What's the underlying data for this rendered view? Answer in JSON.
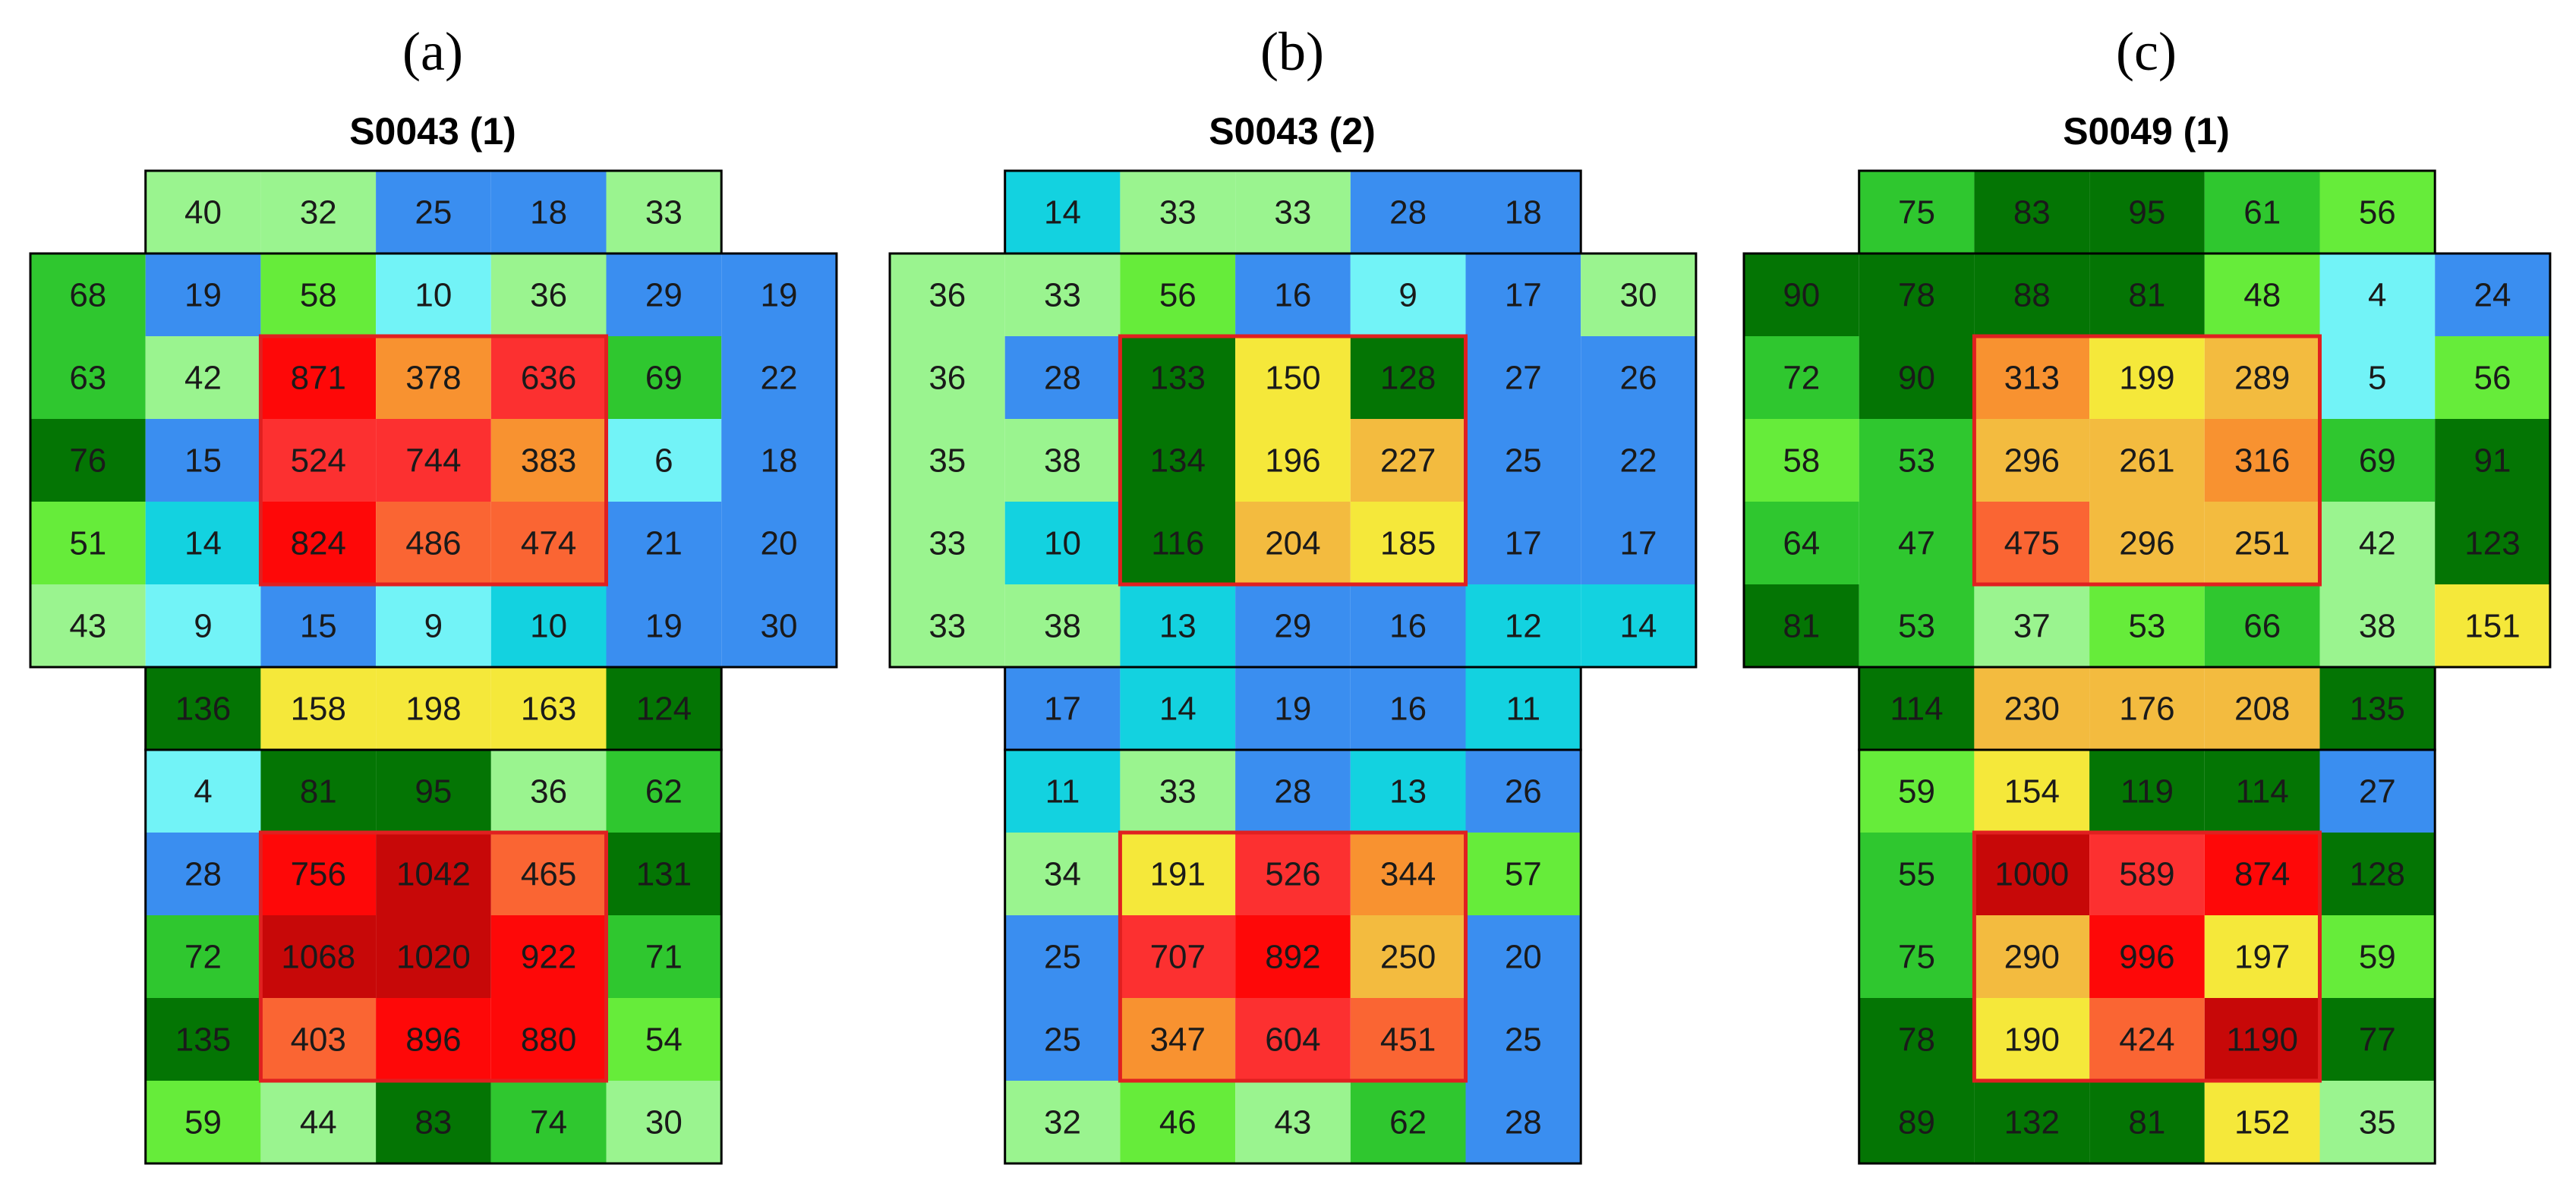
{
  "chart_data": [
    {
      "type": "heatmap",
      "panel": "(a)",
      "title": "S0043 (1)",
      "rows": [
        [
          null,
          40,
          32,
          25,
          18,
          33,
          null
        ],
        [
          68,
          19,
          58,
          10,
          36,
          29,
          19
        ],
        [
          63,
          42,
          871,
          378,
          636,
          69,
          22
        ],
        [
          76,
          15,
          524,
          744,
          383,
          6,
          18
        ],
        [
          51,
          14,
          824,
          486,
          474,
          21,
          20
        ],
        [
          43,
          9,
          15,
          9,
          10,
          19,
          30
        ],
        [
          null,
          136,
          158,
          198,
          163,
          124,
          null
        ],
        [
          null,
          4,
          81,
          95,
          36,
          62,
          null
        ],
        [
          null,
          28,
          756,
          1042,
          465,
          131,
          null
        ],
        [
          null,
          72,
          1068,
          1020,
          922,
          71,
          null
        ],
        [
          null,
          135,
          403,
          896,
          880,
          54,
          null
        ],
        [
          null,
          59,
          44,
          83,
          74,
          30,
          null
        ]
      ],
      "highlight_boxes": [
        {
          "row_start": 2,
          "row_end": 4,
          "col_start": 2,
          "col_end": 4
        },
        {
          "row_start": 8,
          "row_end": 10,
          "col_start": 2,
          "col_end": 4
        }
      ]
    },
    {
      "type": "heatmap",
      "panel": "(b)",
      "title": "S0043 (2)",
      "rows": [
        [
          null,
          14,
          33,
          33,
          28,
          18,
          null
        ],
        [
          36,
          33,
          56,
          16,
          9,
          17,
          30
        ],
        [
          36,
          28,
          133,
          150,
          128,
          27,
          26
        ],
        [
          35,
          38,
          134,
          196,
          227,
          25,
          22
        ],
        [
          33,
          10,
          116,
          204,
          185,
          17,
          17
        ],
        [
          33,
          38,
          13,
          29,
          16,
          12,
          14
        ],
        [
          null,
          17,
          14,
          19,
          16,
          11,
          null
        ],
        [
          null,
          11,
          33,
          28,
          13,
          26,
          null
        ],
        [
          null,
          34,
          191,
          526,
          344,
          57,
          null
        ],
        [
          null,
          25,
          707,
          892,
          250,
          20,
          null
        ],
        [
          null,
          25,
          347,
          604,
          451,
          25,
          null
        ],
        [
          null,
          32,
          46,
          43,
          62,
          28,
          null
        ]
      ],
      "highlight_boxes": [
        {
          "row_start": 2,
          "row_end": 4,
          "col_start": 2,
          "col_end": 4
        },
        {
          "row_start": 8,
          "row_end": 10,
          "col_start": 2,
          "col_end": 4
        }
      ]
    },
    {
      "type": "heatmap",
      "panel": "(c)",
      "title": "S0049 (1)",
      "rows": [
        [
          null,
          75,
          83,
          95,
          61,
          56,
          null
        ],
        [
          90,
          78,
          88,
          81,
          48,
          4,
          24
        ],
        [
          72,
          90,
          313,
          199,
          289,
          5,
          56
        ],
        [
          58,
          53,
          296,
          261,
          316,
          69,
          91
        ],
        [
          64,
          47,
          475,
          296,
          251,
          42,
          123
        ],
        [
          81,
          53,
          37,
          53,
          66,
          38,
          151
        ],
        [
          null,
          114,
          230,
          176,
          208,
          135,
          null
        ],
        [
          null,
          59,
          154,
          119,
          114,
          27,
          null
        ],
        [
          null,
          55,
          1000,
          589,
          874,
          128,
          null
        ],
        [
          null,
          75,
          290,
          996,
          197,
          59,
          null
        ],
        [
          null,
          78,
          190,
          424,
          1190,
          77,
          null
        ],
        [
          null,
          89,
          132,
          81,
          152,
          35,
          null
        ]
      ],
      "highlight_boxes": [
        {
          "row_start": 2,
          "row_end": 4,
          "col_start": 2,
          "col_end": 4
        },
        {
          "row_start": 8,
          "row_end": 10,
          "col_start": 2,
          "col_end": 4
        }
      ]
    }
  ],
  "colors": {
    "very_low": "#72f3f7",
    "low_cyan": "#13d2e0",
    "blue": "#3a8ef0",
    "light_green": "#9af48f",
    "lime": "#66ec3a",
    "green": "#2fc72f",
    "dark_green": "#047504",
    "yellow": "#f5e83a",
    "gold": "#f3bb3f",
    "orange": "#f89230",
    "orange_red": "#fa6533",
    "red": "#fc3030",
    "bright_red": "#fe0808",
    "dark_red": "#c70808",
    "box_outline": "#e02020"
  },
  "cell_colors": [
    [
      [
        null,
        "light_green",
        "light_green",
        "blue",
        "blue",
        "light_green",
        null
      ],
      [
        "green",
        "blue",
        "lime",
        "very_low",
        "light_green",
        "blue",
        "blue"
      ],
      [
        "green",
        "light_green",
        "bright_red",
        "orange",
        "red",
        "green",
        "blue"
      ],
      [
        "dark_green",
        "blue",
        "red",
        "red",
        "orange",
        "very_low",
        "blue"
      ],
      [
        "lime",
        "low_cyan",
        "bright_red",
        "orange_red",
        "orange_red",
        "blue",
        "blue"
      ],
      [
        "light_green",
        "very_low",
        "blue",
        "very_low",
        "low_cyan",
        "blue",
        "blue"
      ],
      [
        null,
        "dark_green",
        "yellow",
        "yellow",
        "yellow",
        "dark_green",
        null
      ],
      [
        null,
        "very_low",
        "dark_green",
        "dark_green",
        "light_green",
        "green",
        null
      ],
      [
        null,
        "blue",
        "bright_red",
        "dark_red",
        "orange_red",
        "dark_green",
        null
      ],
      [
        null,
        "green",
        "dark_red",
        "dark_red",
        "bright_red",
        "green",
        null
      ],
      [
        null,
        "dark_green",
        "orange_red",
        "bright_red",
        "bright_red",
        "lime",
        null
      ],
      [
        null,
        "lime",
        "light_green",
        "dark_green",
        "green",
        "light_green",
        null
      ]
    ],
    [
      [
        null,
        "low_cyan",
        "light_green",
        "light_green",
        "blue",
        "blue",
        null
      ],
      [
        "light_green",
        "light_green",
        "lime",
        "blue",
        "very_low",
        "blue",
        "light_green"
      ],
      [
        "light_green",
        "blue",
        "dark_green",
        "yellow",
        "dark_green",
        "blue",
        "blue"
      ],
      [
        "light_green",
        "light_green",
        "dark_green",
        "yellow",
        "gold",
        "blue",
        "blue"
      ],
      [
        "light_green",
        "low_cyan",
        "dark_green",
        "gold",
        "yellow",
        "blue",
        "blue"
      ],
      [
        "light_green",
        "light_green",
        "low_cyan",
        "blue",
        "blue",
        "low_cyan",
        "low_cyan"
      ],
      [
        null,
        "blue",
        "low_cyan",
        "blue",
        "blue",
        "low_cyan",
        null
      ],
      [
        null,
        "low_cyan",
        "light_green",
        "blue",
        "low_cyan",
        "blue",
        null
      ],
      [
        null,
        "light_green",
        "yellow",
        "red",
        "orange",
        "lime",
        null
      ],
      [
        null,
        "blue",
        "red",
        "bright_red",
        "gold",
        "blue",
        null
      ],
      [
        null,
        "blue",
        "orange",
        "red",
        "orange_red",
        "blue",
        null
      ],
      [
        null,
        "light_green",
        "lime",
        "light_green",
        "green",
        "blue",
        null
      ]
    ],
    [
      [
        null,
        "green",
        "dark_green",
        "dark_green",
        "green",
        "lime",
        null
      ],
      [
        "dark_green",
        "dark_green",
        "dark_green",
        "dark_green",
        "lime",
        "very_low",
        "blue"
      ],
      [
        "green",
        "dark_green",
        "orange",
        "yellow",
        "gold",
        "very_low",
        "lime"
      ],
      [
        "lime",
        "green",
        "gold",
        "gold",
        "orange",
        "green",
        "dark_green"
      ],
      [
        "green",
        "green",
        "orange_red",
        "gold",
        "gold",
        "light_green",
        "dark_green"
      ],
      [
        "dark_green",
        "green",
        "light_green",
        "lime",
        "green",
        "light_green",
        "yellow"
      ],
      [
        null,
        "dark_green",
        "gold",
        "gold",
        "gold",
        "dark_green",
        null
      ],
      [
        null,
        "lime",
        "yellow",
        "dark_green",
        "dark_green",
        "blue",
        null
      ],
      [
        null,
        "green",
        "dark_red",
        "red",
        "bright_red",
        "dark_green",
        null
      ],
      [
        null,
        "green",
        "gold",
        "bright_red",
        "yellow",
        "lime",
        null
      ],
      [
        null,
        "dark_green",
        "yellow",
        "orange_red",
        "dark_red",
        "dark_green",
        null
      ],
      [
        null,
        "dark_green",
        "dark_green",
        "dark_green",
        "yellow",
        "light_green",
        null
      ]
    ]
  ]
}
